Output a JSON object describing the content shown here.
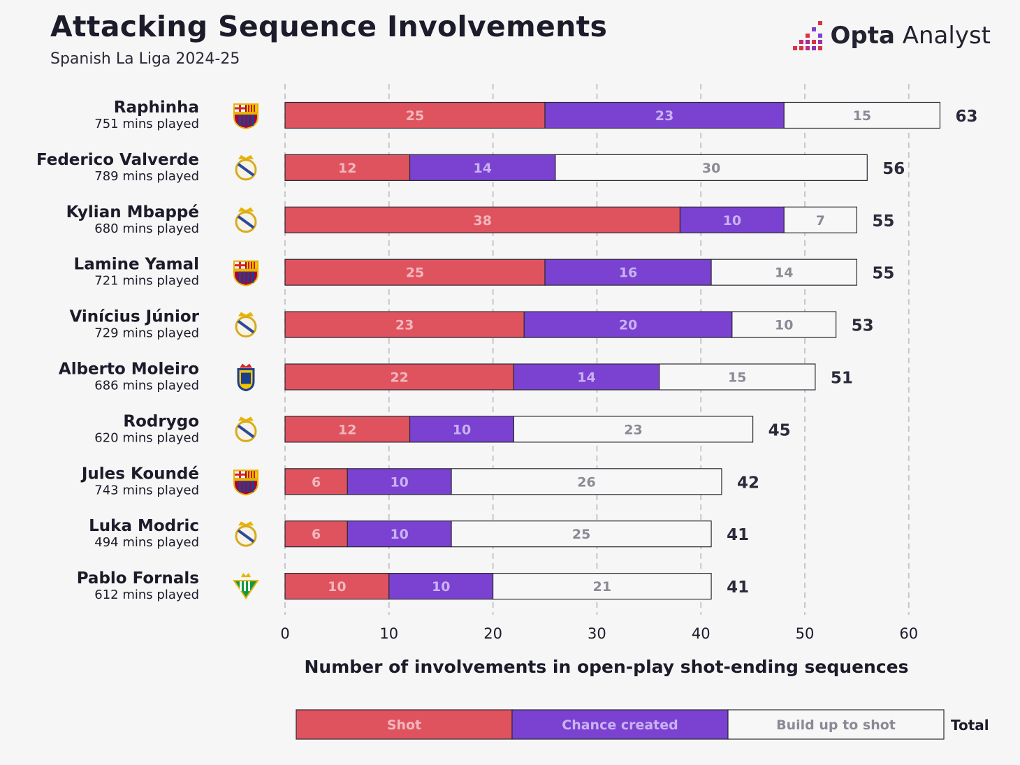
{
  "header": {
    "title": "Attacking Sequence Involvements",
    "subtitle": "Spanish La Liga 2024-25",
    "brand_bold": "Opta",
    "brand_light": " Analyst"
  },
  "colors": {
    "shot": "#df535f",
    "chance": "#7b42d1",
    "buildup": "#f7f7f7",
    "background": "#f6f6f6"
  },
  "chart_data": {
    "type": "bar",
    "orientation": "horizontal",
    "stacked": true,
    "xlabel": "Number of involvements in open-play shot-ending sequences",
    "xlim": [
      0,
      60
    ],
    "xticks": [
      0,
      10,
      20,
      30,
      40,
      50,
      60
    ],
    "grid": "vertical dashed",
    "legend_position": "bottom",
    "total_label": "Total",
    "series": [
      {
        "name": "Shot",
        "values": [
          25,
          12,
          38,
          25,
          23,
          22,
          12,
          6,
          6,
          10
        ]
      },
      {
        "name": "Chance created",
        "values": [
          23,
          14,
          10,
          16,
          20,
          14,
          10,
          10,
          10,
          10
        ]
      },
      {
        "name": "Build up to shot",
        "values": [
          15,
          30,
          7,
          14,
          10,
          15,
          23,
          26,
          25,
          21
        ]
      }
    ],
    "players": [
      {
        "name": "Raphinha",
        "mins": "751 mins played",
        "club": "barcelona",
        "total": 63
      },
      {
        "name": "Federico Valverde",
        "mins": "789 mins played",
        "club": "real-madrid",
        "total": 56
      },
      {
        "name": "Kylian Mbappé",
        "mins": "680 mins played",
        "club": "real-madrid",
        "total": 55
      },
      {
        "name": "Lamine Yamal",
        "mins": "721 mins played",
        "club": "barcelona",
        "total": 55
      },
      {
        "name": "Vinícius Júnior",
        "mins": "729 mins played",
        "club": "real-madrid",
        "total": 53
      },
      {
        "name": "Alberto Moleiro",
        "mins": "686 mins played",
        "club": "las-palmas",
        "total": 51
      },
      {
        "name": "Rodrygo",
        "mins": "620 mins played",
        "club": "real-madrid",
        "total": 45
      },
      {
        "name": "Jules Koundé",
        "mins": "743 mins played",
        "club": "barcelona",
        "total": 42
      },
      {
        "name": "Luka Modric",
        "mins": "494 mins played",
        "club": "real-madrid",
        "total": 41
      },
      {
        "name": "Pablo Fornals",
        "mins": "612 mins played",
        "club": "real-betis",
        "total": 41
      }
    ]
  }
}
